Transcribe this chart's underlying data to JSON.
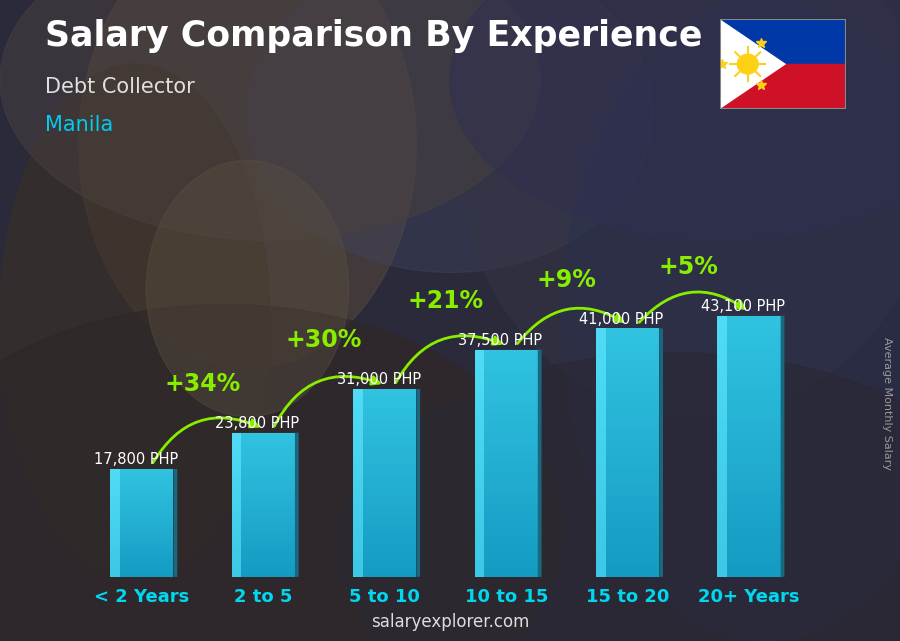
{
  "title": "Salary Comparison By Experience",
  "subtitle": "Debt Collector",
  "city": "Manila",
  "ylabel": "Average Monthly Salary",
  "footer": "salaryexplorer.com",
  "footer_bold": "salary",
  "categories": [
    "< 2 Years",
    "2 to 5",
    "5 to 10",
    "10 to 15",
    "15 to 20",
    "20+ Years"
  ],
  "values": [
    17800,
    23800,
    31000,
    37500,
    41000,
    43100
  ],
  "value_labels": [
    "17,800 PHP",
    "23,800 PHP",
    "31,000 PHP",
    "37,500 PHP",
    "41,000 PHP",
    "43,100 PHP"
  ],
  "pct_labels": [
    "+34%",
    "+30%",
    "+21%",
    "+9%",
    "+5%"
  ],
  "bar_color_main": "#2ab8d8",
  "bar_color_light": "#5dd8f0",
  "bar_color_dark": "#1a7090",
  "bar_color_right": "#1a6880",
  "bar_color_top": "#70e8ff",
  "bg_color": "#1a2035",
  "title_color": "#ffffff",
  "subtitle_color": "#e0e0e0",
  "city_color": "#00ccee",
  "pct_color": "#88ee00",
  "value_label_color": "#ffffff",
  "footer_color": "#dddddd",
  "ylabel_color": "#999999",
  "ylim": [
    0,
    55000
  ],
  "title_fontsize": 25,
  "subtitle_fontsize": 15,
  "city_fontsize": 15,
  "value_fontsize": 10.5,
  "pct_fontsize": 17,
  "cat_fontsize": 13,
  "footer_fontsize": 12
}
